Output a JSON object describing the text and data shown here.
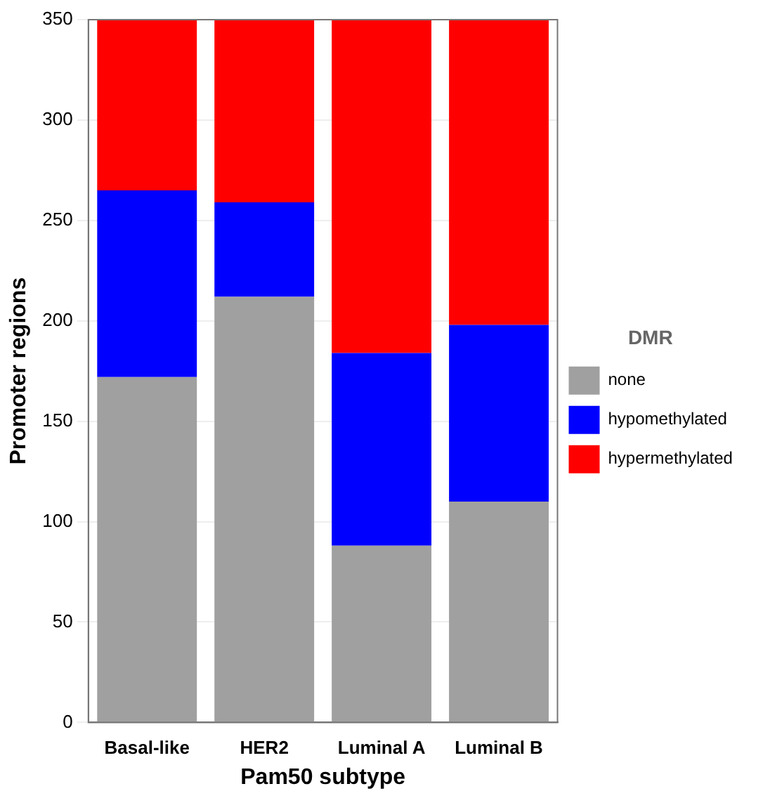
{
  "chart_data": {
    "type": "bar",
    "stacked": true,
    "xlabel": "Pam50 subtype",
    "ylabel": "Promoter regions",
    "legend_title": "DMR",
    "legend": "right",
    "categories": [
      "Basal-like",
      "HER2",
      "Luminal A",
      "Luminal B"
    ],
    "series": [
      {
        "name": "none",
        "color": "#a0a0a0",
        "values": [
          172,
          212,
          88,
          110
        ]
      },
      {
        "name": "hypomethylated",
        "color": "#0000ff",
        "values": [
          93,
          47,
          96,
          88
        ]
      },
      {
        "name": "hypermethylated",
        "color": "#ff0000",
        "values": [
          85,
          91,
          166,
          152
        ]
      }
    ],
    "ylim": [
      0,
      350
    ],
    "yticks": [
      0,
      50,
      100,
      150,
      200,
      250,
      300,
      350
    ],
    "grid": "y"
  }
}
